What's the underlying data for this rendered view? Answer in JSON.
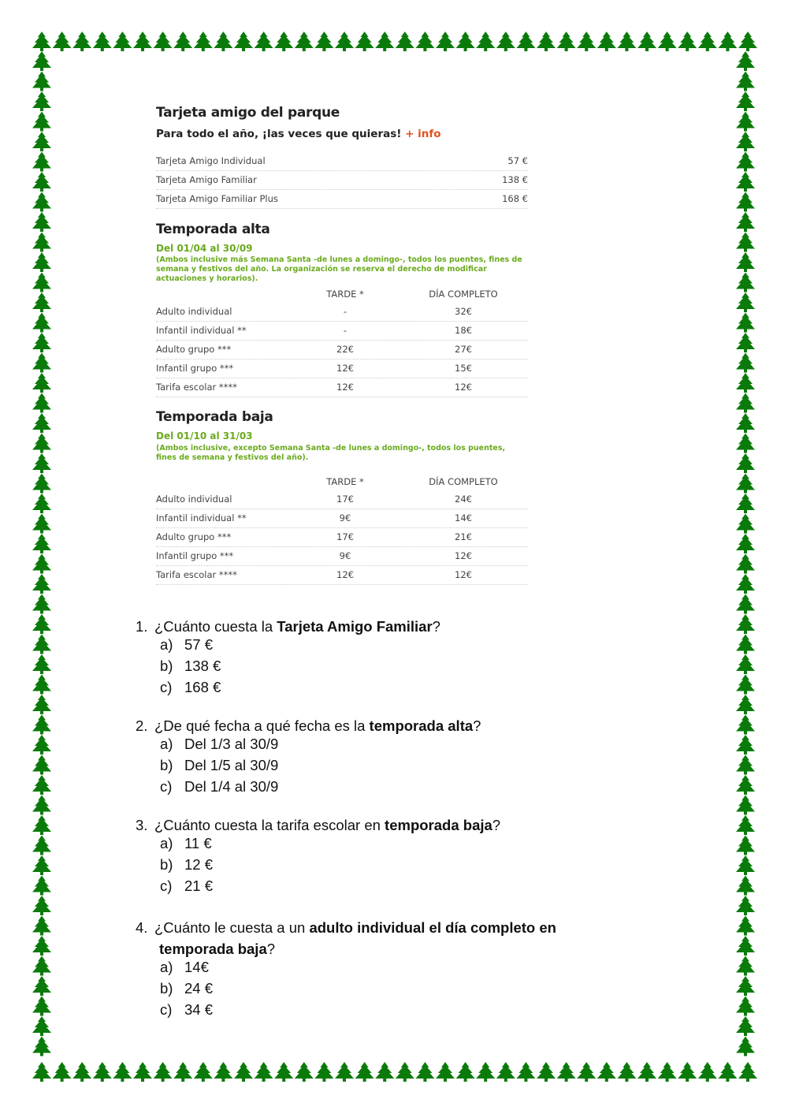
{
  "border": {
    "icon": "christmas-tree-icon",
    "color": "#0a7a0a"
  },
  "card_section": {
    "title": "Tarjeta amigo del parque",
    "subtitle": "Para todo el año, ¡las veces que quieras!",
    "info_link": "+ info",
    "rows": [
      {
        "label": "Tarjeta Amigo Individual",
        "price": "57 €"
      },
      {
        "label": "Tarjeta Amigo Familiar",
        "price": "138 €"
      },
      {
        "label": "Tarjeta Amigo Familiar Plus",
        "price": "168 €"
      }
    ]
  },
  "alta": {
    "title": "Temporada alta",
    "dates": "Del 01/04 al 30/09",
    "note": "(Ambos inclusive más Semana Santa -de lunes a domingo-, todos los puentes, fines de semana y festivos del año. La organización se reserva el derecho de modificar actuaciones y horarios).",
    "col_tarde": "TARDE *",
    "col_dia": "DÍA COMPLETO",
    "rows": [
      {
        "label": "Adulto individual",
        "tarde": "-",
        "dia": "32€"
      },
      {
        "label": "Infantil individual **",
        "tarde": "-",
        "dia": "18€"
      },
      {
        "label": "Adulto grupo ***",
        "tarde": "22€",
        "dia": "27€"
      },
      {
        "label": "Infantil grupo ***",
        "tarde": "12€",
        "dia": "15€"
      },
      {
        "label": "Tarifa escolar ****",
        "tarde": "12€",
        "dia": "12€"
      }
    ]
  },
  "baja": {
    "title": "Temporada baja",
    "dates": "Del 01/10 al 31/03",
    "note": "(Ambos inclusive, excepto Semana Santa -de lunes a domingo-, todos los puentes, fines de semana y festivos del año).",
    "col_tarde": "TARDE *",
    "col_dia": "DÍA COMPLETO",
    "rows": [
      {
        "label": "Adulto individual",
        "tarde": "17€",
        "dia": "24€"
      },
      {
        "label": "Infantil individual **",
        "tarde": "9€",
        "dia": "14€"
      },
      {
        "label": "Adulto grupo ***",
        "tarde": "17€",
        "dia": "21€"
      },
      {
        "label": "Infantil grupo ***",
        "tarde": "9€",
        "dia": "12€"
      },
      {
        "label": "Tarifa escolar ****",
        "tarde": "12€",
        "dia": "12€"
      }
    ]
  },
  "questions": [
    {
      "num": "1.",
      "pre": "¿Cuánto cuesta la ",
      "bold": "Tarjeta Amigo Familiar",
      "post": "?",
      "options": [
        {
          "l": "a)",
          "t": "57 €"
        },
        {
          "l": "b)",
          "t": "138 €"
        },
        {
          "l": "c)",
          "t": "168 €"
        }
      ]
    },
    {
      "num": "2.",
      "pre": "¿De qué fecha a qué fecha es la ",
      "bold": "temporada alta",
      "post": "?",
      "options": [
        {
          "l": "a)",
          "t": "Del 1/3 al 30/9"
        },
        {
          "l": "b)",
          "t": "Del 1/5 al 30/9"
        },
        {
          "l": "c)",
          "t": "Del 1/4 al 30/9"
        }
      ]
    },
    {
      "num": "3.",
      "pre": "¿Cuánto cuesta la tarifa escolar en ",
      "bold": "temporada baja",
      "post": "?",
      "options": [
        {
          "l": "a)",
          "t": "11 €"
        },
        {
          "l": "b)",
          "t": "12 €"
        },
        {
          "l": "c)",
          "t": "21 €"
        }
      ]
    },
    {
      "num": "4.",
      "pre": "¿Cuánto le cuesta a un ",
      "bold": "adulto individual el día completo en",
      "bold2": "temporada baja",
      "post": "?",
      "options": [
        {
          "l": "a)",
          "t": "14€"
        },
        {
          "l": "b)",
          "t": "24 €"
        },
        {
          "l": "c)",
          "t": "34 €"
        }
      ]
    }
  ]
}
